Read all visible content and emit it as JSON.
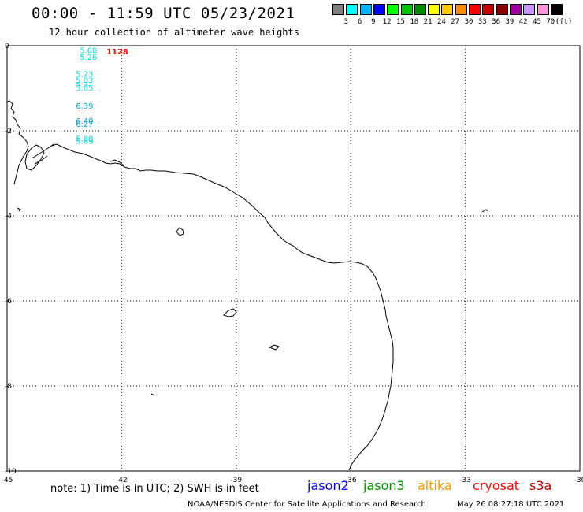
{
  "title": "00:00 - 11:59 UTC 05/23/2021",
  "subtitle": "12 hour collection of altimeter wave heights",
  "legend": {
    "colors": [
      "#808080",
      "#00ffff",
      "#00b4ff",
      "#0000ff",
      "#00ff00",
      "#00c800",
      "#008c00",
      "#ffff00",
      "#ffc800",
      "#ff8c00",
      "#ff0000",
      "#c80000",
      "#8c0000",
      "#a000a0",
      "#c896ff",
      "#ff96dc",
      "#000000"
    ],
    "labels": [
      "3",
      "6",
      "9",
      "12",
      "15",
      "18",
      "21",
      "24",
      "27",
      "30",
      "33",
      "36",
      "39",
      "42",
      "45",
      "70"
    ],
    "unit": "(ft)"
  },
  "map": {
    "lon_range": [
      -45,
      -30
    ],
    "lat_range": [
      -10,
      0
    ],
    "x_ticks": [
      "-45",
      "-42",
      "-39",
      "-36",
      "-33",
      "-30"
    ],
    "y_ticks": [
      "0",
      "-2",
      "-4",
      "-6",
      "-8",
      "-10"
    ]
  },
  "observations": [
    {
      "lon": -43.1,
      "lat": -0.05,
      "text": "5.68",
      "color": "#00dcdc"
    },
    {
      "lon": -43.1,
      "lat": -0.2,
      "text": "5.26",
      "color": "#00dcdc"
    },
    {
      "lon": -42.4,
      "lat": -0.07,
      "text": "1128",
      "color": "#ff0000"
    },
    {
      "lon": -43.2,
      "lat": -0.6,
      "text": "5.23",
      "color": "#00dcdc"
    },
    {
      "lon": -43.2,
      "lat": -0.75,
      "text": "5.03",
      "color": "#00dcdc"
    },
    {
      "lon": -43.2,
      "lat": -0.85,
      "text": "5.31",
      "color": "#00dcdc"
    },
    {
      "lon": -43.2,
      "lat": -0.93,
      "text": "5.05",
      "color": "#00dcdc"
    },
    {
      "lon": -43.2,
      "lat": -1.35,
      "text": "6.39",
      "color": "#00a0e6"
    },
    {
      "lon": -43.2,
      "lat": -1.7,
      "text": "6.40",
      "color": "#00a0e6"
    },
    {
      "lon": -43.2,
      "lat": -1.78,
      "text": "6.27",
      "color": "#00a0e6"
    },
    {
      "lon": -43.2,
      "lat": -2.12,
      "text": "5.80",
      "color": "#00dcdc"
    },
    {
      "lon": -43.2,
      "lat": -2.18,
      "text": "5.69",
      "color": "#00dcdc"
    }
  ],
  "note": "note: 1) Time is in UTC; 2) SWH is in feet",
  "satellites": [
    {
      "name": "jason2",
      "color": "#0000ff"
    },
    {
      "name": "jason3",
      "color": "#009600"
    },
    {
      "name": "altika",
      "color": "#ff9600"
    },
    {
      "name": "cryosat",
      "color": "#ff0000"
    },
    {
      "name": "s3a",
      "color": "#c80000"
    }
  ],
  "credit": "NOAA/NESDIS Center for Satellite Applications and Research",
  "timestamp": "May 26 08:27:18 UTC 2021"
}
